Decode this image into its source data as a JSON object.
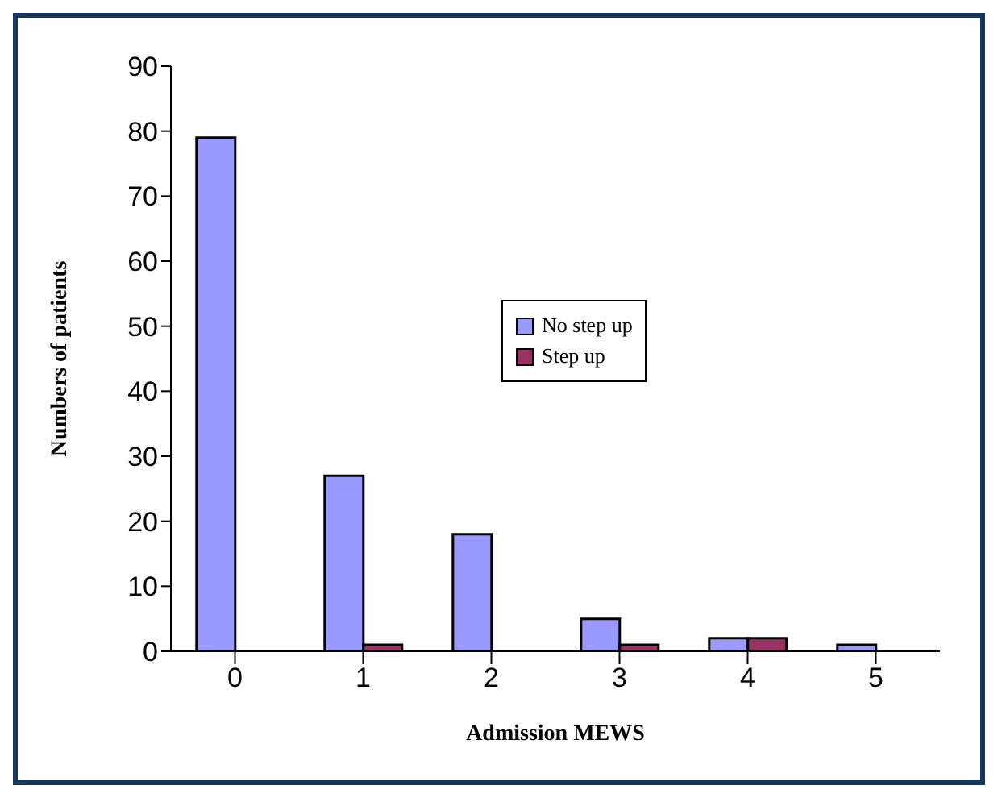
{
  "chart_data": {
    "type": "bar",
    "xlabel": "Admission MEWS",
    "ylabel": "Numbers of patients",
    "categories": [
      "0",
      "1",
      "2",
      "3",
      "4",
      "5"
    ],
    "series": [
      {
        "name": "No step up",
        "color": "#9999ff",
        "values": [
          79,
          27,
          18,
          5,
          2,
          1
        ]
      },
      {
        "name": "Step up",
        "color": "#993366",
        "values": [
          0,
          1,
          0,
          1,
          2,
          0
        ]
      }
    ],
    "ylim": [
      0,
      90
    ],
    "yticks": [
      0,
      10,
      20,
      30,
      40,
      50,
      60,
      70,
      80,
      90
    ],
    "grid": false,
    "legend": "center"
  }
}
